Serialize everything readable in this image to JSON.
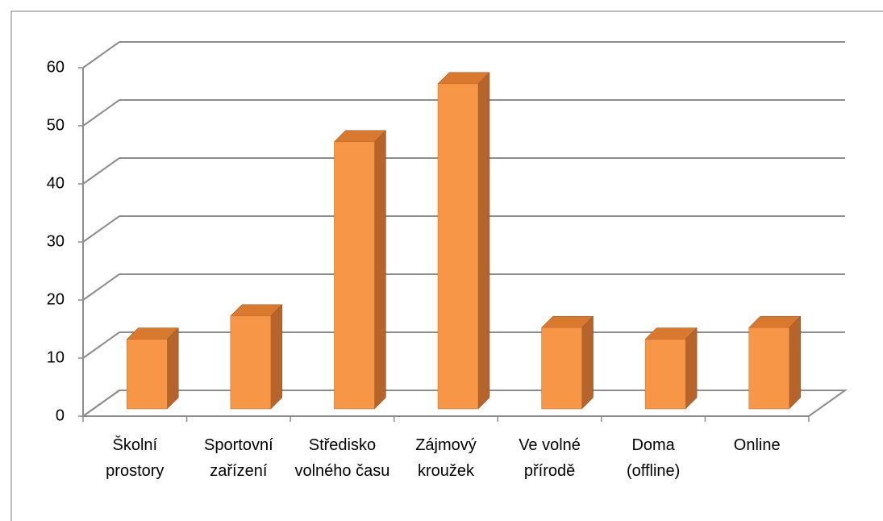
{
  "chart_data": {
    "type": "bar3d",
    "categories": [
      "Školní prostory",
      "Sportovní zařízení",
      "Středisko volného času",
      "Zájmový kroužek",
      "Ve volné přírodě",
      "Doma (offline)",
      "Online"
    ],
    "values": [
      12,
      16,
      46,
      56,
      14,
      12,
      14
    ],
    "color": "#f79646",
    "ylim": [
      0,
      60
    ],
    "yticks": [
      0,
      10,
      20,
      30,
      40,
      50,
      60
    ],
    "grid": true
  }
}
